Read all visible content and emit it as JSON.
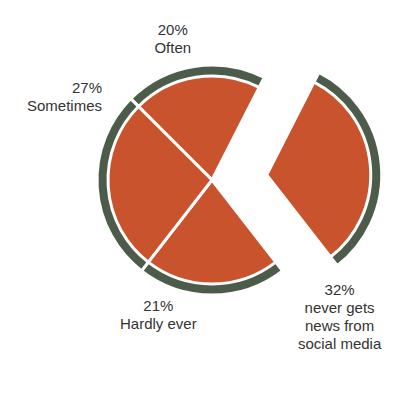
{
  "chart_data": {
    "type": "pie",
    "categories": [
      "Often",
      "never gets news from social media",
      "Hardly ever",
      "Sometimes"
    ],
    "values": [
      20,
      32,
      21,
      27
    ],
    "value_labels": [
      "20%",
      "32%",
      "21%",
      "27%"
    ],
    "color": "#c9532d",
    "data_labels": true
  }
}
